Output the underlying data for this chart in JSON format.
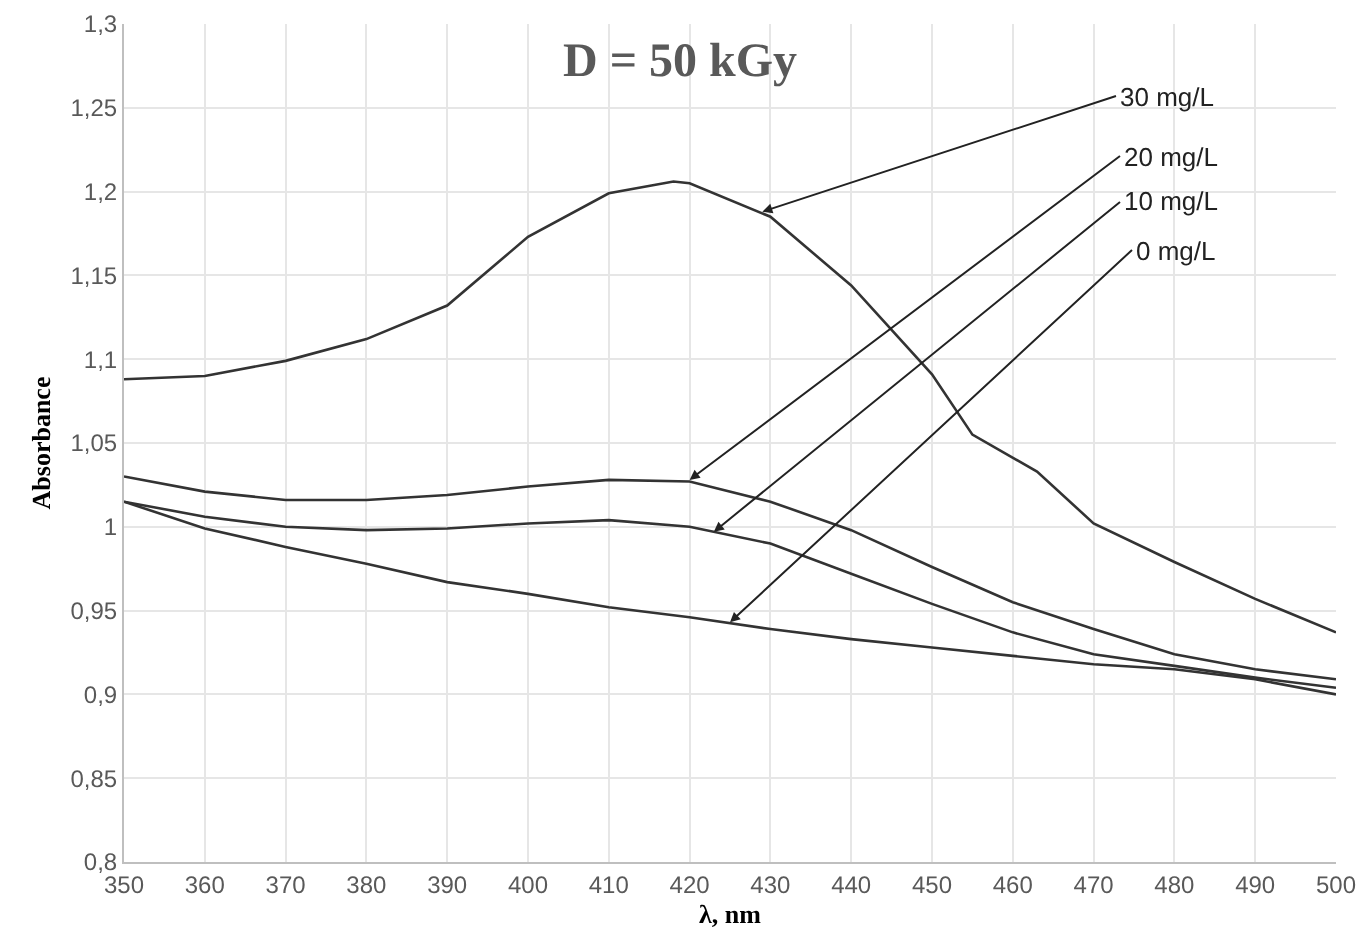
{
  "chart_data": {
    "type": "line",
    "title": "D = 50 kGy",
    "xlabel": "λ, nm",
    "ylabel": "Absorbance",
    "x": [
      350,
      360,
      370,
      380,
      390,
      400,
      410,
      420,
      430,
      440,
      450,
      460,
      470,
      480,
      490,
      500
    ],
    "series": [
      {
        "color": "#333333",
        "x": [
          350,
          360,
          370,
          380,
          390,
          400,
          410,
          418,
          420,
          430,
          440,
          450,
          455,
          463,
          470,
          480,
          490,
          500
        ],
        "values": [
          1.088,
          1.09,
          1.099,
          1.112,
          1.132,
          1.173,
          1.199,
          1.206,
          1.205,
          1.185,
          1.144,
          1.091,
          1.055,
          1.033,
          1.002,
          0.979,
          0.957,
          0.937
        ]
      },
      {
        "color": "#333333",
        "values": [
          1.03,
          1.021,
          1.016,
          1.016,
          1.019,
          1.024,
          1.028,
          1.027,
          1.015,
          0.998,
          0.976,
          0.955,
          0.939,
          0.924,
          0.915,
          0.909
        ]
      },
      {
        "color": "#333333",
        "values": [
          1.015,
          1.006,
          1.0,
          0.998,
          0.999,
          1.002,
          1.004,
          1.0,
          0.99,
          0.972,
          0.954,
          0.937,
          0.924,
          0.917,
          0.91,
          0.904
        ]
      },
      {
        "color": "#333333",
        "values": [
          1.015,
          0.999,
          0.988,
          0.978,
          0.967,
          0.96,
          0.952,
          0.946,
          0.939,
          0.933,
          0.928,
          0.923,
          0.918,
          0.915,
          0.909,
          0.9
        ]
      }
    ],
    "annotations": [
      {
        "text": "30 mg/L",
        "x": 429,
        "y": 1.188
      },
      {
        "text": "20 mg/L",
        "x": 420,
        "y": 1.028
      },
      {
        "text": "10 mg/L",
        "x": 423,
        "y": 0.997
      },
      {
        "text": "0 mg/L",
        "x": 425,
        "y": 0.943
      }
    ],
    "xlim": [
      350,
      500
    ],
    "xticks": [
      350,
      360,
      370,
      380,
      390,
      400,
      410,
      420,
      430,
      440,
      450,
      460,
      470,
      480,
      490,
      500
    ],
    "ylim": [
      0.8,
      1.3
    ],
    "yticks": [
      {
        "value": 0.8,
        "label": "0,8"
      },
      {
        "value": 0.85,
        "label": "0,85"
      },
      {
        "value": 0.9,
        "label": "0,9"
      },
      {
        "value": 0.95,
        "label": "0,95"
      },
      {
        "value": 1,
        "label": "1"
      },
      {
        "value": 1.05,
        "label": "1,05"
      },
      {
        "value": 1.1,
        "label": "1,1"
      },
      {
        "value": 1.15,
        "label": "1,15"
      },
      {
        "value": 1.2,
        "label": "1,2"
      },
      {
        "value": 1.25,
        "label": "1,25"
      },
      {
        "value": 1.3,
        "label": "1,3"
      }
    ],
    "grid": true,
    "marker": "none",
    "line_style": "solid"
  }
}
